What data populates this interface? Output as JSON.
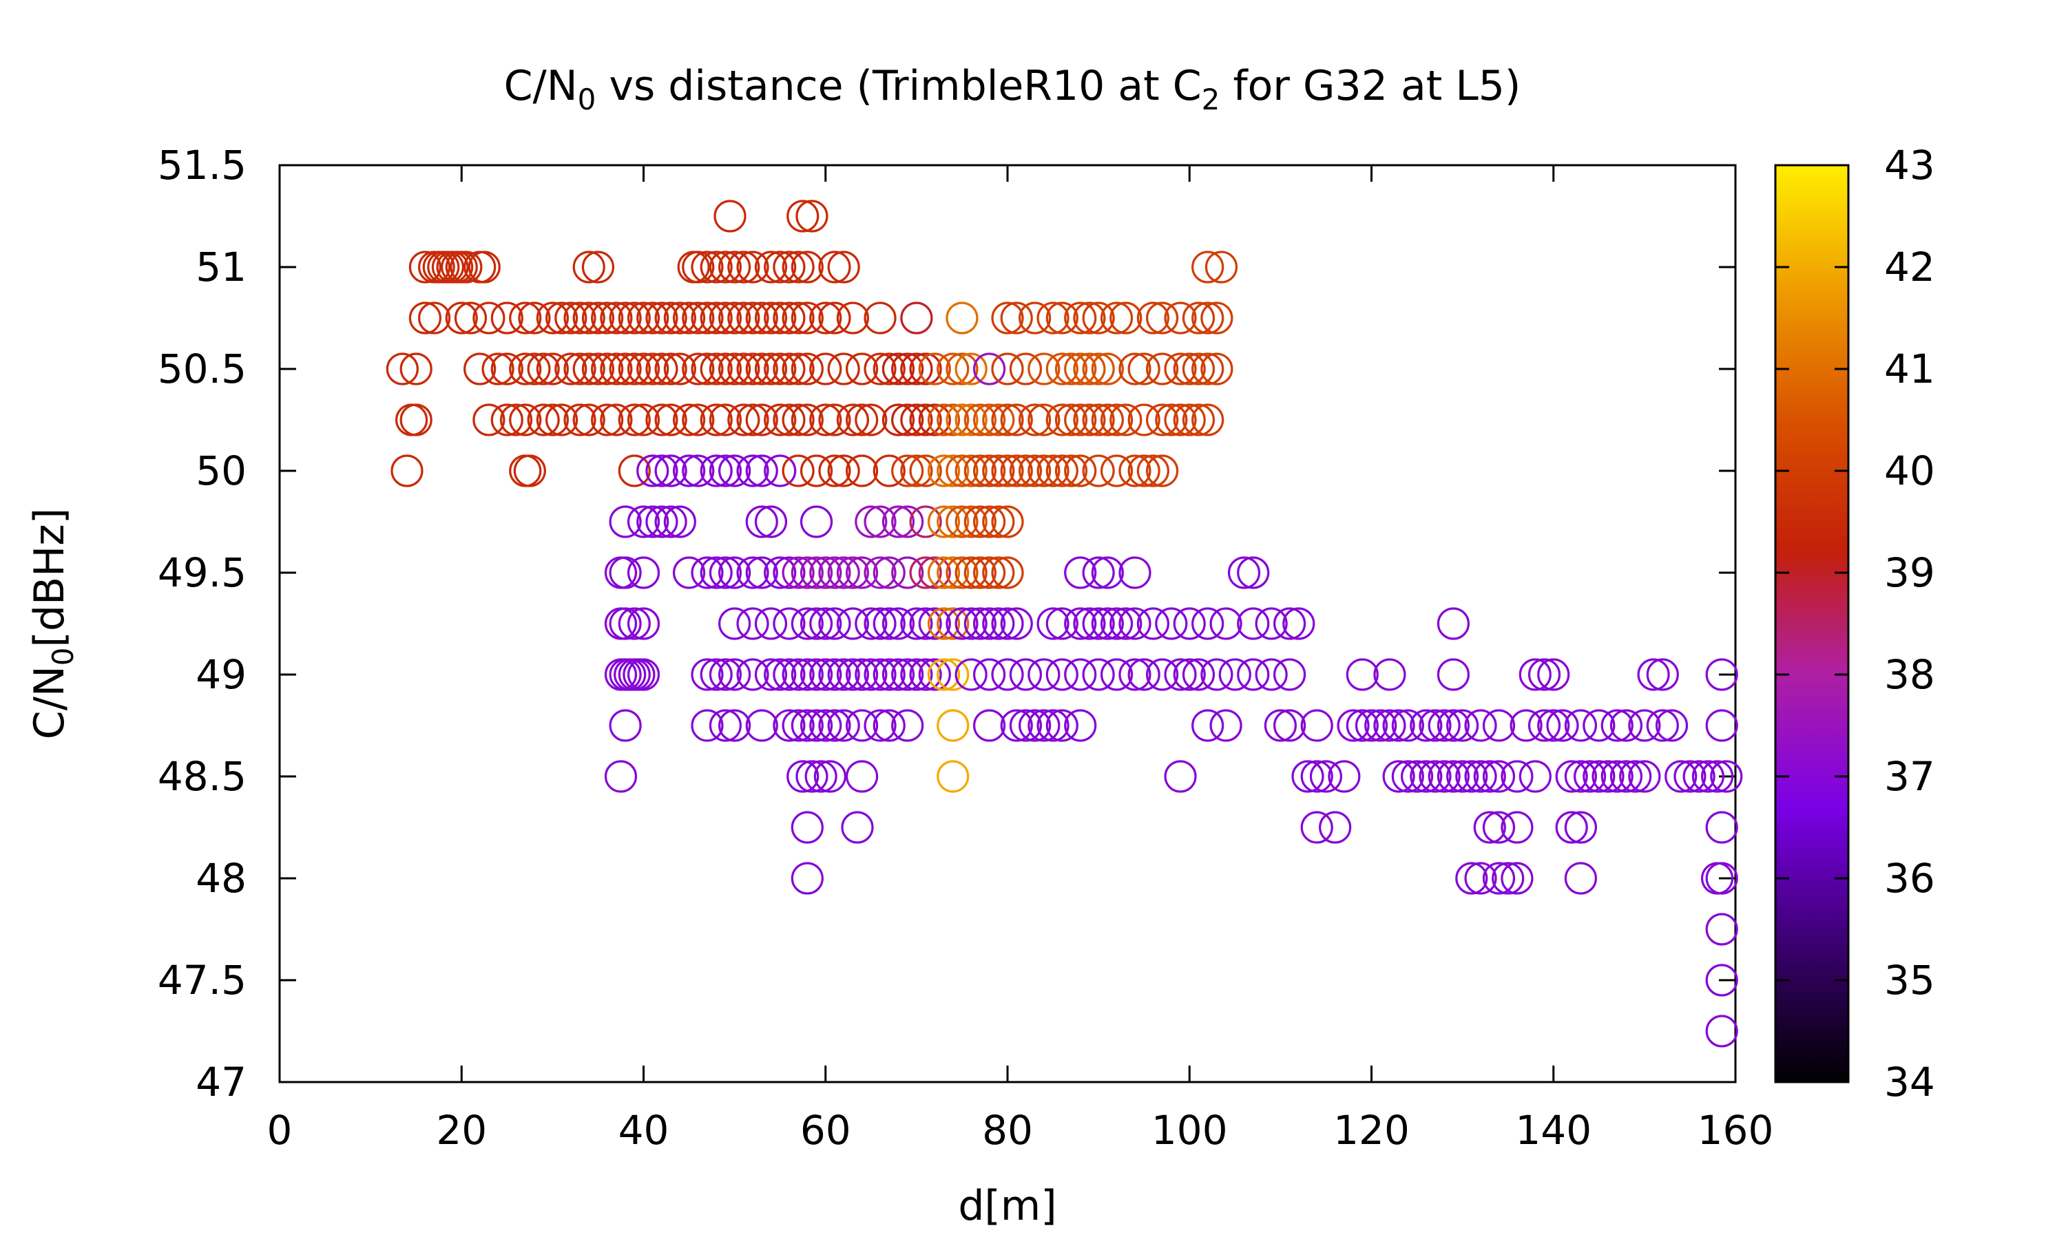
{
  "chart_data": {
    "type": "scatter",
    "title": {
      "prefix": "C/N",
      "sub1": "0",
      "middle": " vs distance (TrimbleR10 at C",
      "sub2": "2",
      "suffix": " for G32 at L5)"
    },
    "xlabel": "d[m]",
    "ylabel": {
      "prefix": "C/N",
      "sub": "0",
      "suffix": "[dBHz]"
    },
    "xlim": [
      0,
      160
    ],
    "ylim": [
      47,
      51.5
    ],
    "xticks": [
      "0",
      "20",
      "40",
      "60",
      "80",
      "100",
      "120",
      "140",
      "160"
    ],
    "yticks": [
      "47",
      "47.5",
      "48",
      "48.5",
      "49",
      "49.5",
      "50",
      "50.5",
      "51",
      "51.5"
    ],
    "colorbar": {
      "range": [
        34,
        43
      ],
      "ticks": [
        "34",
        "35",
        "36",
        "37",
        "38",
        "39",
        "40",
        "41",
        "42",
        "43"
      ],
      "palette": "black-purple-red-orange-yellow"
    },
    "marker": "open-circle",
    "point_groups": [
      {
        "y": 51.25,
        "x": [
          49.5,
          57.5,
          58.5
        ],
        "c": [
          39.5,
          39.5,
          39.5
        ]
      },
      {
        "y": 51,
        "x": [
          16,
          17,
          17.5,
          18,
          18.5,
          19,
          19.5,
          20,
          20.5,
          22,
          22.5,
          34,
          35,
          45.5,
          46,
          47,
          48,
          49,
          50,
          51,
          52,
          54,
          55,
          56,
          57,
          58,
          61,
          62,
          102,
          103.5
        ],
        "c": [
          39.5,
          39.5,
          39.5,
          39.5,
          39.5,
          39.5,
          39.5,
          39.5,
          39.5,
          39.5,
          39.5,
          39.5,
          39.5,
          39.5,
          39.5,
          39.5,
          39.5,
          39.5,
          39.5,
          39.5,
          39.5,
          39.5,
          39.5,
          39.5,
          39.5,
          39.5,
          39.5,
          39.5,
          40,
          40
        ]
      },
      {
        "y": 50.75,
        "x": [
          16,
          17,
          20,
          21,
          23,
          25,
          27,
          28,
          30,
          31,
          32,
          33,
          34,
          35,
          36,
          37,
          38,
          39,
          40,
          41,
          42,
          43,
          44,
          45,
          46,
          47,
          48,
          49,
          50,
          51,
          52,
          53,
          54,
          55,
          56,
          57,
          58,
          60,
          61,
          63,
          66,
          70,
          75,
          80,
          81,
          83,
          85,
          86,
          88,
          89,
          90,
          92,
          93,
          96,
          97,
          99,
          101,
          102,
          103
        ],
        "c": [
          39.5,
          39.5,
          39.5,
          39.5,
          39.5,
          39.5,
          39.5,
          39.5,
          39.5,
          39.5,
          39.5,
          39.5,
          39.5,
          39.5,
          39.5,
          39.5,
          39.5,
          39.5,
          39.5,
          39.5,
          39.5,
          39.5,
          39.5,
          39.5,
          39.5,
          39.5,
          39.5,
          39.5,
          39.5,
          39.5,
          39.5,
          39.5,
          39.5,
          39.5,
          39.5,
          39.5,
          39.5,
          39.5,
          39.5,
          39.5,
          39.5,
          39,
          41,
          40,
          40,
          40,
          40,
          40,
          40,
          40,
          40,
          40,
          40,
          40,
          40,
          40,
          40,
          40,
          40
        ]
      },
      {
        "y": 50.5,
        "x": [
          13.5,
          15,
          22,
          24,
          25,
          27,
          28,
          29,
          30,
          32,
          33,
          34,
          35,
          36,
          37,
          38,
          39,
          40,
          41,
          42,
          43,
          44,
          46,
          47,
          48,
          49,
          50,
          51,
          52,
          53,
          54,
          55,
          56,
          57,
          58,
          60,
          62,
          64,
          66,
          67,
          68,
          69,
          70,
          71,
          72,
          74,
          75,
          76,
          78,
          80,
          82,
          84,
          86,
          87,
          88,
          89,
          90,
          91,
          94,
          95,
          97,
          99,
          100,
          101,
          102,
          103
        ],
        "c": [
          39.5,
          39.5,
          39.5,
          39.5,
          39.5,
          39.5,
          39.5,
          39.5,
          39.5,
          39.5,
          39.5,
          39.5,
          39.5,
          39.5,
          39.5,
          39.5,
          39.5,
          39.5,
          39.5,
          39.5,
          39.5,
          39.5,
          39.5,
          39.5,
          39.5,
          39.5,
          39.5,
          39.5,
          39.5,
          39.5,
          39.5,
          39.5,
          39.5,
          39.5,
          39.5,
          39.5,
          39.5,
          39.5,
          39.5,
          39.5,
          39.2,
          39.2,
          39.2,
          39.2,
          40.5,
          40.5,
          40.5,
          41,
          37.5,
          40,
          40,
          40.5,
          40.5,
          40.5,
          40.5,
          40.5,
          40.5,
          40.5,
          40,
          40,
          40,
          40,
          40,
          40,
          40,
          40
        ]
      },
      {
        "y": 50.25,
        "x": [
          14.5,
          15,
          23,
          25,
          26,
          27,
          29,
          30,
          31,
          33,
          34,
          36,
          37,
          39,
          40,
          42,
          43,
          45,
          46,
          48,
          49,
          51,
          52,
          53,
          55,
          56,
          57,
          58,
          60,
          61,
          63,
          64,
          65,
          68,
          69,
          70,
          71,
          72,
          73,
          74,
          75,
          76,
          77,
          78,
          79,
          80,
          81,
          83,
          84,
          86,
          87,
          88,
          89,
          90,
          91,
          92,
          93,
          95,
          97,
          98,
          99,
          100,
          101,
          102
        ],
        "c": [
          39.5,
          39.5,
          39.5,
          39.5,
          39.5,
          39.5,
          39.5,
          39.5,
          39.5,
          39.5,
          39.5,
          39.5,
          39.5,
          39.5,
          39.5,
          39.5,
          39.5,
          39.5,
          39.5,
          39.5,
          39.5,
          39.5,
          39.5,
          39.5,
          39.5,
          39.5,
          39.5,
          39.5,
          39.5,
          39.5,
          39.5,
          39.5,
          39.5,
          39.3,
          39.3,
          39.3,
          39.3,
          39.3,
          40.5,
          40.5,
          41,
          41,
          40.5,
          40.5,
          40.5,
          40,
          40,
          40,
          40,
          40,
          40,
          40,
          40,
          40,
          40,
          40,
          40,
          40,
          40,
          40,
          40,
          40,
          40,
          40
        ]
      },
      {
        "y": 50,
        "x": [
          14,
          27,
          27.5,
          39,
          41,
          42,
          43,
          45,
          46,
          48,
          49,
          50,
          52,
          53,
          55,
          57,
          59,
          61,
          62,
          64,
          67,
          69,
          70,
          71,
          73,
          74,
          75,
          76,
          77,
          78,
          79,
          80,
          81,
          82,
          83,
          84,
          85,
          86,
          87,
          88,
          90,
          92,
          94,
          95,
          96,
          97
        ],
        "c": [
          39.5,
          39.5,
          39.5,
          39.5,
          37,
          37,
          37,
          37,
          37,
          37,
          37,
          37,
          37,
          37,
          37,
          39.5,
          39.5,
          39.5,
          39.5,
          39.5,
          39.5,
          40,
          40,
          40,
          41,
          41,
          40.5,
          40.5,
          40,
          40,
          40,
          40,
          40,
          40,
          40,
          40,
          40,
          40,
          40,
          40,
          40,
          40,
          40,
          40,
          40,
          40
        ]
      },
      {
        "y": 49.75,
        "x": [
          38,
          40,
          41,
          42,
          43,
          44,
          53,
          54,
          59,
          65,
          66,
          68,
          69,
          71,
          73,
          74,
          75,
          76,
          77,
          78,
          79,
          80
        ],
        "c": [
          37,
          37,
          37,
          37,
          37,
          37,
          37,
          37,
          37,
          37.5,
          37.5,
          37.5,
          37.5,
          38.5,
          41,
          41,
          40.5,
          40.5,
          40,
          40,
          40,
          40
        ]
      },
      {
        "y": 49.5,
        "x": [
          37.5,
          38,
          40,
          45,
          47,
          48,
          49,
          50,
          52,
          53,
          55,
          56,
          57,
          58,
          59,
          60,
          61,
          62,
          63,
          64,
          66,
          67,
          69,
          71,
          72,
          73,
          74,
          75,
          76,
          77,
          78,
          79,
          80,
          88,
          90,
          91,
          94,
          106,
          107
        ],
        "c": [
          37,
          37,
          37,
          37,
          37,
          37,
          37,
          37,
          37,
          37,
          37,
          37,
          37.5,
          37.5,
          37.5,
          37.5,
          37.5,
          37.5,
          37.5,
          37.5,
          37.5,
          37.5,
          37.5,
          38.5,
          38.5,
          41,
          41,
          40.5,
          40,
          40,
          40,
          40,
          40,
          37,
          37,
          37,
          37,
          37,
          37
        ]
      },
      {
        "y": 49.25,
        "x": [
          37.5,
          38,
          39,
          40,
          50,
          52,
          54,
          56,
          58,
          59,
          60,
          61,
          63,
          65,
          66,
          67,
          68,
          70,
          71,
          72,
          73,
          74,
          75,
          76,
          77,
          78,
          79,
          80,
          81,
          85,
          86,
          88,
          89,
          90,
          91,
          92,
          93,
          94,
          96,
          98,
          100,
          102,
          104,
          107,
          109,
          111,
          112,
          129
        ],
        "c": [
          37,
          37,
          37,
          37,
          37,
          37,
          37,
          37,
          37,
          37,
          37,
          37,
          37,
          37,
          37,
          37,
          37,
          37,
          37,
          37,
          41,
          41,
          37,
          37,
          37,
          37,
          37,
          37,
          37,
          37,
          37,
          37,
          37,
          37,
          37,
          37,
          37,
          37,
          37,
          37,
          37,
          37,
          37,
          37,
          37,
          37,
          37,
          37
        ]
      },
      {
        "y": 49,
        "x": [
          37.5,
          38,
          38.5,
          39,
          39.5,
          40,
          47,
          48,
          49,
          50,
          52,
          54,
          55,
          56,
          57,
          58,
          59,
          60,
          61,
          62,
          63,
          64,
          65,
          66,
          67,
          68,
          69,
          70,
          71,
          72,
          73,
          74,
          76,
          78,
          80,
          82,
          84,
          86,
          88,
          90,
          92,
          94,
          95,
          97,
          99,
          100,
          101,
          103,
          105,
          107,
          109,
          111,
          119,
          122,
          129,
          138,
          139,
          140,
          151,
          152,
          158.5
        ],
        "c": [
          37,
          37,
          37,
          37,
          37,
          37,
          37,
          37,
          37,
          37,
          37,
          37,
          37,
          37,
          37,
          37,
          37,
          37,
          37,
          37,
          37,
          37,
          37,
          37,
          37,
          37,
          37,
          37,
          37,
          37,
          42,
          42,
          37,
          37,
          37,
          37,
          37,
          37,
          37,
          37,
          37,
          37,
          37,
          37,
          37,
          37,
          37,
          37,
          37,
          37,
          37,
          37,
          37,
          37,
          37,
          37,
          37,
          37,
          37,
          37,
          37
        ]
      },
      {
        "y": 48.75,
        "x": [
          38,
          47,
          49,
          50,
          53,
          56,
          57,
          58,
          59,
          60,
          61,
          62,
          64,
          66,
          67,
          69,
          74,
          78,
          81,
          82,
          83,
          84,
          85,
          86,
          88,
          102,
          104,
          110,
          111,
          114,
          118,
          119,
          120,
          121,
          122,
          123,
          124,
          126,
          127,
          128,
          129,
          130,
          132,
          134,
          137,
          139,
          140,
          141,
          143,
          145,
          147,
          148,
          150,
          152,
          153,
          158.5
        ],
        "c": [
          37,
          37,
          37,
          37,
          37,
          37,
          37,
          37,
          37,
          37,
          37,
          37,
          37,
          37,
          37,
          37,
          42,
          37,
          37,
          37,
          37,
          37,
          37,
          37,
          37,
          37,
          37,
          37,
          37,
          37,
          37,
          37,
          37,
          37,
          37,
          37,
          37,
          37,
          37,
          37,
          37,
          37,
          37,
          37,
          37,
          37,
          37,
          37,
          37,
          37,
          37,
          37,
          37,
          37,
          37,
          37
        ]
      },
      {
        "y": 48.5,
        "x": [
          37.5,
          57.5,
          58.5,
          59.5,
          60.5,
          64,
          74,
          99,
          113,
          114,
          115,
          117,
          123,
          124,
          125,
          126,
          127,
          128,
          129,
          130,
          131,
          132,
          133,
          134,
          136,
          138,
          142,
          143,
          144,
          145,
          146,
          147,
          148,
          149,
          150,
          154,
          155,
          156,
          157,
          158,
          159
        ],
        "c": [
          37,
          37,
          37,
          37,
          37,
          37,
          42,
          37,
          37,
          37,
          37,
          37,
          37,
          37,
          37,
          37,
          37,
          37,
          37,
          37,
          37,
          37,
          37,
          37,
          37,
          37,
          37,
          37,
          37,
          37,
          37,
          37,
          37,
          37,
          37,
          37,
          37,
          37,
          37,
          37,
          37
        ]
      },
      {
        "y": 48.25,
        "x": [
          58,
          63.5,
          114,
          116,
          133,
          134,
          136,
          142,
          143,
          158.5
        ],
        "c": [
          37,
          37,
          37,
          37,
          37,
          37,
          37,
          37,
          37,
          37
        ]
      },
      {
        "y": 48,
        "x": [
          58,
          131,
          132,
          134,
          135,
          136,
          143,
          158,
          158.5
        ],
        "c": [
          37,
          37,
          37,
          37,
          37,
          37,
          37,
          37,
          37
        ]
      },
      {
        "y": 47.75,
        "x": [
          158.5
        ],
        "c": [
          37
        ]
      },
      {
        "y": 47.5,
        "x": [
          158.5
        ],
        "c": [
          37
        ]
      },
      {
        "y": 47.25,
        "x": [
          158.5
        ],
        "c": [
          37
        ]
      }
    ]
  }
}
